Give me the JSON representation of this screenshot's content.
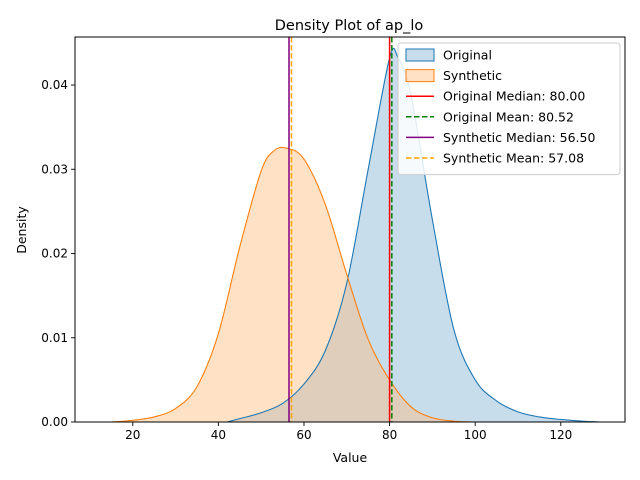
{
  "chart_data": {
    "type": "area",
    "title": "Density Plot of ap_lo",
    "xlabel": "Value",
    "ylabel": "Density",
    "xlim": [
      6.5,
      135
    ],
    "ylim": [
      0,
      0.0457
    ],
    "xticks": [
      20,
      40,
      60,
      80,
      100,
      120
    ],
    "yticks": [
      0.0,
      0.01,
      0.02,
      0.03,
      0.04
    ],
    "ytick_labels": [
      "0.00",
      "0.01",
      "0.02",
      "0.03",
      "0.04"
    ],
    "grid": false,
    "legend_position": "top-right",
    "series": [
      {
        "name": "Original",
        "color": "#1f77b4",
        "fill": "#1f77b4",
        "x": [
          42,
          45,
          50,
          55,
          60,
          65,
          70,
          75,
          80,
          82,
          85,
          90,
          95,
          100,
          105,
          110,
          115,
          120,
          125,
          129
        ],
        "y": [
          0.0,
          0.0004,
          0.0011,
          0.0022,
          0.0045,
          0.0085,
          0.0165,
          0.03,
          0.0432,
          0.0432,
          0.0388,
          0.024,
          0.011,
          0.005,
          0.0025,
          0.0012,
          0.0006,
          0.0003,
          0.0001,
          0.0
        ]
      },
      {
        "name": "Synthetic",
        "color": "#ff7f0e",
        "fill": "#ffbb78",
        "x": [
          12.5,
          15,
          20,
          25,
          30,
          35,
          40,
          45,
          50,
          53,
          56,
          60,
          65,
          70,
          75,
          80,
          85,
          90,
          95,
          100
        ],
        "y": [
          0.0,
          0.0,
          0.0002,
          0.0006,
          0.0016,
          0.0042,
          0.0105,
          0.0208,
          0.0298,
          0.0322,
          0.0325,
          0.0312,
          0.0258,
          0.0175,
          0.0098,
          0.005,
          0.0018,
          0.0005,
          0.0001,
          0.0
        ]
      }
    ],
    "vlines": [
      {
        "label": "Original Median: 80.00",
        "x": 80.0,
        "color": "#ff0000",
        "dash": false
      },
      {
        "label": "Original Mean: 80.52",
        "x": 80.52,
        "color": "#008000",
        "dash": true
      },
      {
        "label": "Synthetic Median: 56.50",
        "x": 56.5,
        "color": "#800080",
        "dash": false
      },
      {
        "label": "Synthetic Mean: 57.08",
        "x": 57.08,
        "color": "#ffa500",
        "dash": true
      }
    ]
  }
}
